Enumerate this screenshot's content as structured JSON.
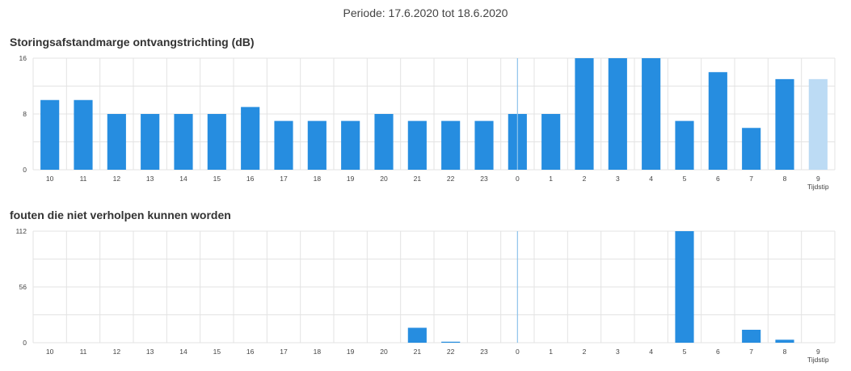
{
  "header": {
    "period": "Periode: 17.6.2020 tot 18.6.2020"
  },
  "chart_data": [
    {
      "type": "bar",
      "title": "Storingsafstandmarge ontvangstrichting (dB)",
      "xlabel": "Tijdstip",
      "ylabel": "",
      "categories": [
        "10",
        "11",
        "12",
        "13",
        "14",
        "15",
        "16",
        "17",
        "18",
        "19",
        "20",
        "21",
        "22",
        "23",
        "0",
        "1",
        "2",
        "3",
        "4",
        "5",
        "6",
        "7",
        "8",
        "9"
      ],
      "values": [
        10,
        10,
        8,
        8,
        8,
        8,
        9,
        7,
        7,
        7,
        8,
        7,
        7,
        7,
        8,
        8,
        16,
        16,
        16,
        7,
        14,
        6,
        13,
        13
      ],
      "ylim": [
        0,
        16
      ],
      "yticks": [
        "0",
        "8",
        "16"
      ],
      "grid": true,
      "day_divider_category": "0",
      "highlight_category": "9",
      "colors": {
        "bar": "#268de0",
        "bar_highlight": "#bcdbf4",
        "divider": "#8ec3ea",
        "grid": "#e3e3e3"
      }
    },
    {
      "type": "bar",
      "title": "fouten die niet verholpen kunnen worden",
      "xlabel": "Tijdstip",
      "ylabel": "",
      "categories": [
        "10",
        "11",
        "12",
        "13",
        "14",
        "15",
        "16",
        "17",
        "18",
        "19",
        "20",
        "21",
        "22",
        "23",
        "0",
        "1",
        "2",
        "3",
        "4",
        "5",
        "6",
        "7",
        "8",
        "9"
      ],
      "values": [
        0,
        0,
        0,
        0,
        0,
        0,
        0,
        0,
        0,
        0,
        0,
        15,
        1,
        0,
        0,
        0,
        0,
        0,
        0,
        112,
        0,
        13,
        3,
        0
      ],
      "ylim": [
        0,
        112
      ],
      "yticks": [
        "0",
        "56",
        "112"
      ],
      "grid": true,
      "day_divider_category": "0",
      "highlight_category": "",
      "colors": {
        "bar": "#268de0",
        "bar_highlight": "#bcdbf4",
        "divider": "#8ec3ea",
        "grid": "#e3e3e3"
      }
    }
  ]
}
